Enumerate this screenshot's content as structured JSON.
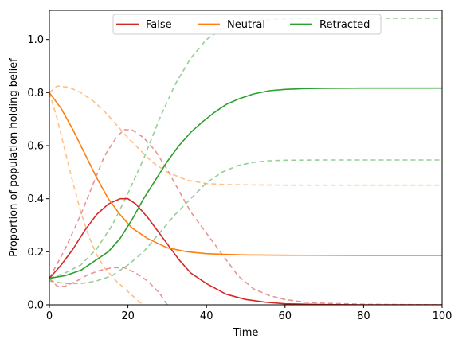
{
  "chart_data": {
    "type": "line",
    "xlabel": "Time",
    "ylabel": "Proportion of population holding belief",
    "xlim": [
      0,
      100
    ],
    "ylim": [
      0,
      1.11
    ],
    "x_ticks": [
      "0",
      "20",
      "40",
      "60",
      "80",
      "100"
    ],
    "y_ticks": [
      "0.0",
      "0.2",
      "0.4",
      "0.6",
      "0.8",
      "1.0"
    ],
    "legend_position": "top-center",
    "series": [
      {
        "name": "False",
        "color": "#d62728",
        "style": "solid",
        "points": [
          [
            0,
            0.1
          ],
          [
            3,
            0.15
          ],
          [
            6,
            0.21
          ],
          [
            9,
            0.28
          ],
          [
            12,
            0.34
          ],
          [
            15,
            0.38
          ],
          [
            18,
            0.4
          ],
          [
            20,
            0.4
          ],
          [
            22,
            0.38
          ],
          [
            25,
            0.33
          ],
          [
            28,
            0.27
          ],
          [
            30,
            0.23
          ],
          [
            33,
            0.17
          ],
          [
            36,
            0.12
          ],
          [
            40,
            0.08
          ],
          [
            45,
            0.04
          ],
          [
            50,
            0.02
          ],
          [
            55,
            0.01
          ],
          [
            60,
            0.004
          ],
          [
            70,
            0.001
          ],
          [
            80,
            0.0
          ],
          [
            100,
            0.0
          ]
        ]
      },
      {
        "name": "Neutral",
        "color": "#ff7f0e",
        "style": "solid",
        "points": [
          [
            0,
            0.8
          ],
          [
            3,
            0.74
          ],
          [
            6,
            0.66
          ],
          [
            9,
            0.57
          ],
          [
            12,
            0.48
          ],
          [
            15,
            0.4
          ],
          [
            18,
            0.34
          ],
          [
            21,
            0.29
          ],
          [
            25,
            0.25
          ],
          [
            30,
            0.215
          ],
          [
            35,
            0.2
          ],
          [
            40,
            0.193
          ],
          [
            45,
            0.19
          ],
          [
            50,
            0.188
          ],
          [
            60,
            0.187
          ],
          [
            80,
            0.186
          ],
          [
            100,
            0.186
          ]
        ]
      },
      {
        "name": "Retracted",
        "color": "#2ca02c",
        "style": "solid",
        "points": [
          [
            0,
            0.1
          ],
          [
            4,
            0.11
          ],
          [
            8,
            0.13
          ],
          [
            12,
            0.17
          ],
          [
            15,
            0.2
          ],
          [
            18,
            0.25
          ],
          [
            21,
            0.32
          ],
          [
            24,
            0.4
          ],
          [
            27,
            0.47
          ],
          [
            30,
            0.54
          ],
          [
            33,
            0.6
          ],
          [
            36,
            0.65
          ],
          [
            39,
            0.69
          ],
          [
            42,
            0.725
          ],
          [
            45,
            0.755
          ],
          [
            48,
            0.775
          ],
          [
            52,
            0.795
          ],
          [
            56,
            0.807
          ],
          [
            60,
            0.812
          ],
          [
            65,
            0.815
          ],
          [
            70,
            0.816
          ],
          [
            80,
            0.817
          ],
          [
            100,
            0.817
          ]
        ]
      },
      {
        "name": "",
        "color": "#d62728",
        "style": "dashed",
        "points": [
          [
            0,
            0.1
          ],
          [
            4,
            0.21
          ],
          [
            8,
            0.34
          ],
          [
            11,
            0.45
          ],
          [
            14,
            0.56
          ],
          [
            17,
            0.63
          ],
          [
            19,
            0.66
          ],
          [
            21,
            0.66
          ],
          [
            24,
            0.63
          ],
          [
            27,
            0.58
          ],
          [
            30,
            0.51
          ],
          [
            33,
            0.43
          ],
          [
            36,
            0.35
          ],
          [
            40,
            0.27
          ],
          [
            44,
            0.19
          ],
          [
            48,
            0.11
          ],
          [
            52,
            0.06
          ],
          [
            56,
            0.035
          ],
          [
            60,
            0.02
          ],
          [
            65,
            0.01
          ],
          [
            70,
            0.006
          ],
          [
            80,
            0.002
          ],
          [
            100,
            0.0
          ]
        ]
      },
      {
        "name": "",
        "color": "#d62728",
        "style": "dashed",
        "points": [
          [
            0,
            0.1
          ],
          [
            2,
            0.07
          ],
          [
            4,
            0.07
          ],
          [
            7,
            0.09
          ],
          [
            10,
            0.115
          ],
          [
            13,
            0.13
          ],
          [
            16,
            0.14
          ],
          [
            19,
            0.14
          ],
          [
            22,
            0.12
          ],
          [
            25,
            0.09
          ],
          [
            28,
            0.045
          ],
          [
            30,
            0.0
          ]
        ]
      },
      {
        "name": "",
        "color": "#ff7f0e",
        "style": "dashed",
        "points": [
          [
            0,
            0.8
          ],
          [
            2,
            0.825
          ],
          [
            5,
            0.82
          ],
          [
            8,
            0.8
          ],
          [
            11,
            0.77
          ],
          [
            14,
            0.73
          ],
          [
            17,
            0.68
          ],
          [
            20,
            0.63
          ],
          [
            23,
            0.585
          ],
          [
            26,
            0.54
          ],
          [
            30,
            0.5
          ],
          [
            35,
            0.47
          ],
          [
            40,
            0.457
          ],
          [
            45,
            0.453
          ],
          [
            50,
            0.452
          ],
          [
            60,
            0.451
          ],
          [
            100,
            0.451
          ]
        ]
      },
      {
        "name": "",
        "color": "#ff7f0e",
        "style": "dashed",
        "points": [
          [
            0,
            0.8
          ],
          [
            2,
            0.7
          ],
          [
            4,
            0.58
          ],
          [
            6,
            0.46
          ],
          [
            8,
            0.35
          ],
          [
            10,
            0.26
          ],
          [
            12,
            0.19
          ],
          [
            14,
            0.14
          ],
          [
            17,
            0.09
          ],
          [
            20,
            0.05
          ],
          [
            23,
            0.01
          ],
          [
            24,
            0.0
          ]
        ]
      },
      {
        "name": "",
        "color": "#2ca02c",
        "style": "dashed",
        "points": [
          [
            0,
            0.1
          ],
          [
            4,
            0.12
          ],
          [
            8,
            0.15
          ],
          [
            12,
            0.21
          ],
          [
            16,
            0.3
          ],
          [
            20,
            0.42
          ],
          [
            24,
            0.55
          ],
          [
            28,
            0.7
          ],
          [
            32,
            0.83
          ],
          [
            36,
            0.93
          ],
          [
            40,
            1.0
          ],
          [
            44,
            1.04
          ],
          [
            48,
            1.06
          ],
          [
            52,
            1.07
          ],
          [
            56,
            1.075
          ],
          [
            60,
            1.078
          ],
          [
            70,
            1.08
          ],
          [
            80,
            1.08
          ],
          [
            100,
            1.08
          ]
        ]
      },
      {
        "name": "",
        "color": "#2ca02c",
        "style": "dashed",
        "points": [
          [
            0,
            0.09
          ],
          [
            4,
            0.08
          ],
          [
            8,
            0.08
          ],
          [
            12,
            0.09
          ],
          [
            16,
            0.11
          ],
          [
            20,
            0.15
          ],
          [
            24,
            0.2
          ],
          [
            28,
            0.27
          ],
          [
            32,
            0.34
          ],
          [
            36,
            0.4
          ],
          [
            40,
            0.46
          ],
          [
            44,
            0.5
          ],
          [
            48,
            0.525
          ],
          [
            52,
            0.537
          ],
          [
            56,
            0.543
          ],
          [
            60,
            0.545
          ],
          [
            70,
            0.546
          ],
          [
            100,
            0.546
          ]
        ]
      }
    ]
  }
}
